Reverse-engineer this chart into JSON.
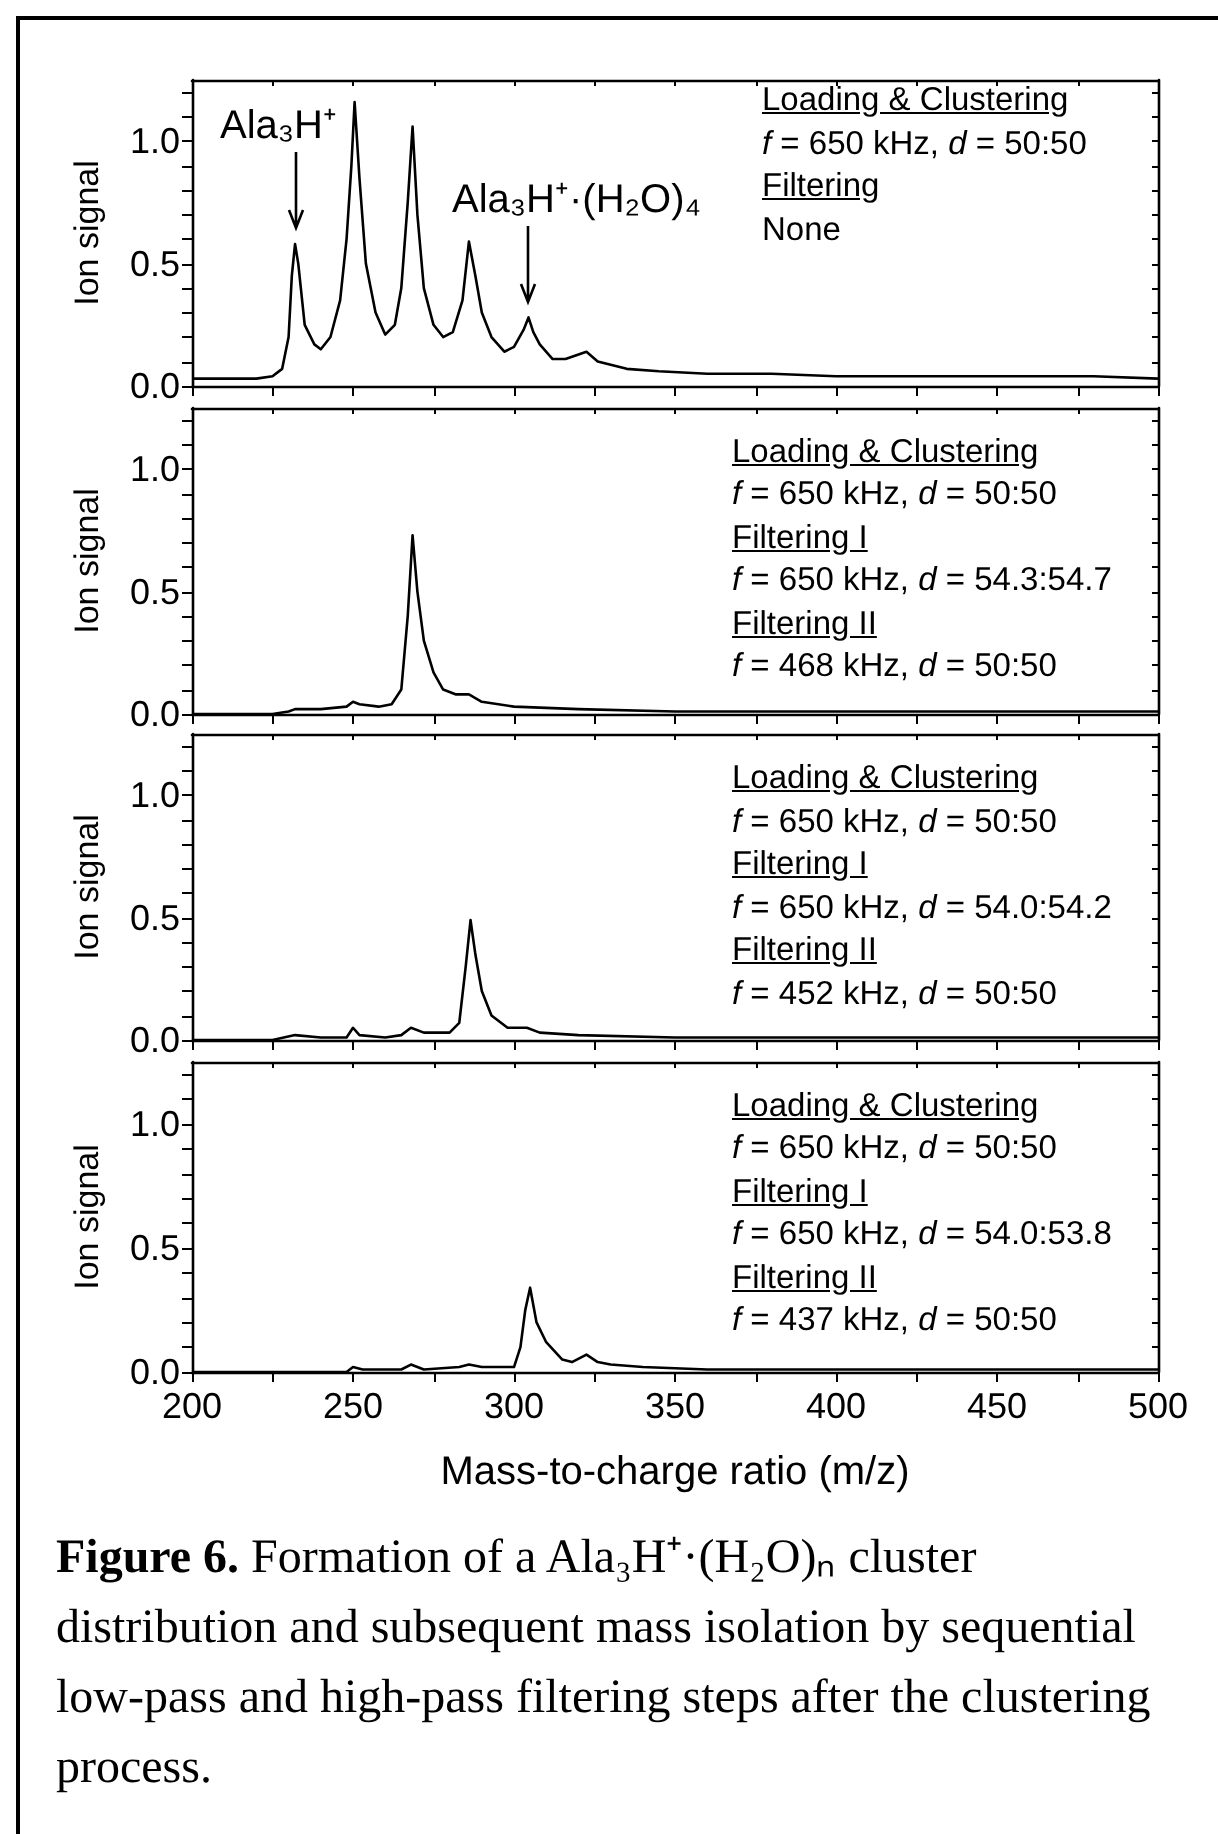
{
  "chart_data": [
    {
      "type": "line",
      "ylabel": "Ion signal",
      "xlim": [
        200,
        500
      ],
      "ylim": [
        0,
        1.25
      ],
      "tick_labels": "y",
      "xticks": [
        {
          "value": 200,
          "label": null
        },
        {
          "value": 225,
          "label": null
        },
        {
          "value": 250,
          "label": null
        },
        {
          "value": 275,
          "label": null
        },
        {
          "value": 300,
          "label": null
        },
        {
          "value": 325,
          "label": null
        },
        {
          "value": 350,
          "label": null
        },
        {
          "value": 375,
          "label": null
        },
        {
          "value": 400,
          "label": null
        },
        {
          "value": 425,
          "label": null
        },
        {
          "value": 450,
          "label": null
        },
        {
          "value": 475,
          "label": null
        },
        {
          "value": 500,
          "label": null
        }
      ],
      "yticks": [
        {
          "value": 0,
          "label": "0.0"
        },
        {
          "value": 0.1,
          "label": null
        },
        {
          "value": 0.2,
          "label": null
        },
        {
          "value": 0.3,
          "label": null
        },
        {
          "value": 0.4,
          "label": null
        },
        {
          "value": 0.5,
          "label": "0.5"
        },
        {
          "value": 0.6,
          "label": null
        },
        {
          "value": 0.7,
          "label": null
        },
        {
          "value": 0.8,
          "label": null
        },
        {
          "value": 0.9,
          "label": null
        },
        {
          "value": 1,
          "label": "1.0"
        },
        {
          "value": 1.1,
          "label": null
        },
        {
          "value": 1.2,
          "label": null
        }
      ],
      "series": [
        {
          "color": "#000000",
          "x": [
            200,
            220,
            225,
            228,
            230,
            231,
            232,
            233,
            235,
            238,
            240,
            243,
            246,
            248,
            249.5,
            250.5,
            252,
            254,
            257,
            260,
            263,
            265,
            267,
            268.5,
            270,
            272,
            275,
            278,
            281,
            284,
            286,
            288,
            290,
            293,
            297,
            300,
            303,
            304.5,
            306,
            308,
            312,
            316,
            322.5,
            326,
            335,
            345,
            360,
            380,
            400,
            420,
            450,
            480,
            500
          ],
          "values": [
            0.03,
            0.03,
            0.04,
            0.07,
            0.2,
            0.45,
            0.58,
            0.5,
            0.25,
            0.17,
            0.15,
            0.2,
            0.35,
            0.6,
            0.9,
            1.16,
            0.85,
            0.5,
            0.3,
            0.21,
            0.25,
            0.4,
            0.75,
            1.06,
            0.7,
            0.4,
            0.25,
            0.2,
            0.22,
            0.35,
            0.59,
            0.45,
            0.3,
            0.2,
            0.14,
            0.16,
            0.23,
            0.28,
            0.22,
            0.17,
            0.11,
            0.11,
            0.14,
            0.1,
            0.07,
            0.06,
            0.05,
            0.05,
            0.04,
            0.04,
            0.04,
            0.04,
            0.03
          ]
        }
      ],
      "annotations": [
        {
          "text": "Ala₃H⁺",
          "x": 232,
          "y": 0.58
        },
        {
          "text": "Ala₃H⁺·(H₂O)₄",
          "x": 304.5,
          "y": 0.28
        },
        "Loading & Clustering",
        "f = 650 kHz, d = 50:50",
        "Filtering",
        "None"
      ]
    },
    {
      "type": "line",
      "ylabel": "Ion signal",
      "xlim": [
        200,
        500
      ],
      "ylim": [
        0,
        1.25
      ],
      "tick_labels": "y",
      "xticks": [
        {
          "value": 200,
          "label": null
        },
        {
          "value": 225,
          "label": null
        },
        {
          "value": 250,
          "label": null
        },
        {
          "value": 275,
          "label": null
        },
        {
          "value": 300,
          "label": null
        },
        {
          "value": 325,
          "label": null
        },
        {
          "value": 350,
          "label": null
        },
        {
          "value": 375,
          "label": null
        },
        {
          "value": 400,
          "label": null
        },
        {
          "value": 425,
          "label": null
        },
        {
          "value": 450,
          "label": null
        },
        {
          "value": 475,
          "label": null
        },
        {
          "value": 500,
          "label": null
        }
      ],
      "yticks": [
        {
          "value": 0,
          "label": "0.0"
        },
        {
          "value": 0.1,
          "label": null
        },
        {
          "value": 0.2,
          "label": null
        },
        {
          "value": 0.3,
          "label": null
        },
        {
          "value": 0.4,
          "label": null
        },
        {
          "value": 0.5,
          "label": "0.5"
        },
        {
          "value": 0.6,
          "label": null
        },
        {
          "value": 0.7,
          "label": null
        },
        {
          "value": 0.8,
          "label": null
        },
        {
          "value": 0.9,
          "label": null
        },
        {
          "value": 1,
          "label": "1.0"
        },
        {
          "value": 1.1,
          "label": null
        },
        {
          "value": 1.2,
          "label": null
        }
      ],
      "series": [
        {
          "color": "#000000",
          "x": [
            200,
            225,
            230,
            232,
            240,
            248,
            250,
            252,
            258,
            262,
            265,
            267,
            268.5,
            270,
            272,
            275,
            278,
            282,
            286,
            290,
            300,
            320,
            350,
            400,
            500
          ],
          "values": [
            0,
            0,
            0.01,
            0.02,
            0.02,
            0.03,
            0.05,
            0.04,
            0.03,
            0.04,
            0.1,
            0.4,
            0.73,
            0.5,
            0.3,
            0.17,
            0.1,
            0.08,
            0.08,
            0.05,
            0.03,
            0.02,
            0.01,
            0.01,
            0.01
          ]
        }
      ],
      "annotations": [
        "Loading & Clustering",
        "f = 650 kHz, d = 50:50",
        "Filtering I",
        "f = 650 kHz, d = 54.3:54.7",
        "Filtering II",
        "f = 468 kHz, d = 50:50"
      ]
    },
    {
      "type": "line",
      "ylabel": "Ion signal",
      "xlim": [
        200,
        500
      ],
      "ylim": [
        0,
        1.25
      ],
      "tick_labels": "y",
      "xticks": [
        {
          "value": 200,
          "label": null
        },
        {
          "value": 225,
          "label": null
        },
        {
          "value": 250,
          "label": null
        },
        {
          "value": 275,
          "label": null
        },
        {
          "value": 300,
          "label": null
        },
        {
          "value": 325,
          "label": null
        },
        {
          "value": 350,
          "label": null
        },
        {
          "value": 375,
          "label": null
        },
        {
          "value": 400,
          "label": null
        },
        {
          "value": 425,
          "label": null
        },
        {
          "value": 450,
          "label": null
        },
        {
          "value": 475,
          "label": null
        },
        {
          "value": 500,
          "label": null
        }
      ],
      "yticks": [
        {
          "value": 0,
          "label": "0.0"
        },
        {
          "value": 0.1,
          "label": null
        },
        {
          "value": 0.2,
          "label": null
        },
        {
          "value": 0.3,
          "label": null
        },
        {
          "value": 0.4,
          "label": null
        },
        {
          "value": 0.5,
          "label": "0.5"
        },
        {
          "value": 0.6,
          "label": null
        },
        {
          "value": 0.7,
          "label": null
        },
        {
          "value": 0.8,
          "label": null
        },
        {
          "value": 0.9,
          "label": null
        },
        {
          "value": 1,
          "label": "1.0"
        },
        {
          "value": 1.1,
          "label": null
        },
        {
          "value": 1.2,
          "label": null
        }
      ],
      "series": [
        {
          "color": "#000000",
          "x": [
            200,
            225,
            232,
            240,
            248,
            250,
            252,
            260,
            265,
            268,
            272,
            280,
            283,
            285,
            286.5,
            288,
            290,
            293,
            298,
            304,
            308,
            320,
            350,
            400,
            500
          ],
          "values": [
            0,
            0,
            0.02,
            0.01,
            0.01,
            0.05,
            0.02,
            0.01,
            0.02,
            0.05,
            0.03,
            0.03,
            0.07,
            0.3,
            0.49,
            0.35,
            0.2,
            0.1,
            0.05,
            0.05,
            0.03,
            0.02,
            0.01,
            0.01,
            0.01
          ]
        }
      ],
      "annotations": [
        "Loading & Clustering",
        "f = 650 kHz, d = 50:50",
        "Filtering I",
        "f = 650 kHz, d = 54.0:54.2",
        "Filtering II",
        "f = 452 kHz, d = 50:50"
      ]
    },
    {
      "type": "line",
      "ylabel": "Ion signal",
      "xlabel": "Mass-to-charge ratio (m/z)",
      "xlim": [
        200,
        500
      ],
      "ylim": [
        0,
        1.25
      ],
      "xticks": [
        {
          "value": 200,
          "label": "200"
        },
        {
          "value": 225,
          "label": null
        },
        {
          "value": 250,
          "label": "250"
        },
        {
          "value": 275,
          "label": null
        },
        {
          "value": 300,
          "label": "300"
        },
        {
          "value": 325,
          "label": null
        },
        {
          "value": 350,
          "label": "350"
        },
        {
          "value": 375,
          "label": null
        },
        {
          "value": 400,
          "label": "400"
        },
        {
          "value": 425,
          "label": null
        },
        {
          "value": 450,
          "label": "450"
        },
        {
          "value": 475,
          "label": null
        },
        {
          "value": 500,
          "label": "500"
        }
      ],
      "yticks": [
        {
          "value": 0,
          "label": "0.0"
        },
        {
          "value": 0.1,
          "label": null
        },
        {
          "value": 0.2,
          "label": null
        },
        {
          "value": 0.3,
          "label": null
        },
        {
          "value": 0.4,
          "label": null
        },
        {
          "value": 0.5,
          "label": "0.5"
        },
        {
          "value": 0.6,
          "label": null
        },
        {
          "value": 0.7,
          "label": null
        },
        {
          "value": 0.8,
          "label": null
        },
        {
          "value": 0.9,
          "label": null
        },
        {
          "value": 1,
          "label": "1.0"
        },
        {
          "value": 1.1,
          "label": null
        },
        {
          "value": 1.2,
          "label": null
        }
      ],
      "series": [
        {
          "color": "#000000",
          "x": [
            200,
            240,
            248,
            250,
            253,
            265,
            268,
            272,
            283,
            286,
            290,
            300,
            302,
            303.5,
            305,
            307,
            310,
            315,
            318,
            322.5,
            326,
            330,
            340,
            360,
            400,
            500
          ],
          "values": [
            0,
            0,
            0,
            0.02,
            0.01,
            0.01,
            0.03,
            0.01,
            0.02,
            0.03,
            0.02,
            0.02,
            0.1,
            0.25,
            0.34,
            0.2,
            0.12,
            0.05,
            0.04,
            0.07,
            0.04,
            0.03,
            0.02,
            0.01,
            0.01,
            0.01
          ]
        }
      ],
      "annotations": [
        "Loading & Clustering",
        "f = 650 kHz, d = 50:50",
        "Filtering I",
        "f = 650 kHz, d = 54.0:53.8",
        "Filtering II",
        "f = 437 kHz, d = 50:50"
      ]
    },
    {
      "type": "other",
      "annotations": [
        "Figure 6. Formation of a Ala₃H⁺·(H₂O)ₙ cluster distribution and subsequent mass isolation by sequential low-pass and high-pass filtering steps after the clustering process."
      ]
    }
  ]
}
